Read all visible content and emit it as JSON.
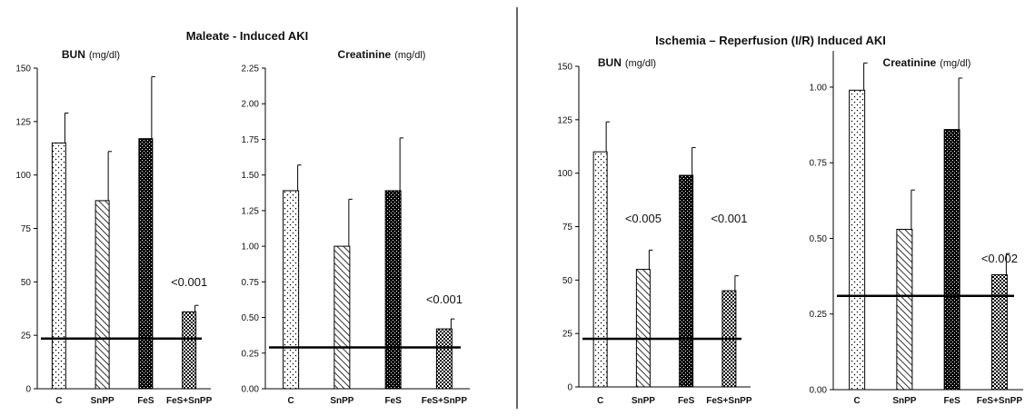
{
  "colors": {
    "bar_outline": "#000000",
    "baseline": "#000000",
    "background": "#ffffff",
    "divider": "#333333"
  },
  "panels": [
    {
      "title": "Maleate - Induced AKI"
    },
    {
      "title": "Ischemia – Reperfusion (I/R) Induced AKI"
    }
  ],
  "chart_data": [
    {
      "type": "bar",
      "panel": 0,
      "title": "BUN",
      "unit": "(mg/dl)",
      "categories": [
        "C",
        "SnPP",
        "FeS",
        "FeS+SnPP"
      ],
      "patterns": [
        "dots",
        "diagonal",
        "dense-checker",
        "checker"
      ],
      "values": [
        115,
        88,
        117,
        36
      ],
      "errors": [
        14,
        23,
        29,
        3
      ],
      "ylim": [
        0,
        150
      ],
      "yticks": [
        "0",
        "25",
        "50",
        "75",
        "100",
        "125",
        "150"
      ],
      "reference_line": 23.5,
      "annotations": [
        {
          "category": "FeS+SnPP",
          "text": "<0.001",
          "y": 48
        }
      ]
    },
    {
      "type": "bar",
      "panel": 0,
      "title": "Creatinine",
      "unit": "(mg/dl)",
      "categories": [
        "C",
        "SnPP",
        "FeS",
        "FeS+SnPP"
      ],
      "patterns": [
        "dots",
        "diagonal",
        "dense-checker",
        "checker"
      ],
      "values": [
        1.39,
        1.0,
        1.39,
        0.42
      ],
      "errors": [
        0.18,
        0.33,
        0.37,
        0.07
      ],
      "ylim": [
        0,
        2.25
      ],
      "yticks": [
        "0.00",
        "0.25",
        "0.50",
        "0.75",
        "1.00",
        "1.25",
        "1.50",
        "1.75",
        "2.00",
        "2.25"
      ],
      "reference_line": 0.29,
      "annotations": [
        {
          "category": "FeS+SnPP",
          "text": "<0.001",
          "y": 0.6
        }
      ]
    },
    {
      "type": "bar",
      "panel": 1,
      "title": "BUN",
      "unit": "(mg/dl)",
      "categories": [
        "C",
        "SnPP",
        "FeS",
        "FeS+SnPP"
      ],
      "patterns": [
        "dots",
        "diagonal",
        "dense-checker",
        "checker"
      ],
      "values": [
        110,
        55,
        99,
        45
      ],
      "errors": [
        14,
        9,
        13,
        7
      ],
      "ylim": [
        0,
        150
      ],
      "yticks": [
        "0",
        "25",
        "50",
        "75",
        "100",
        "125",
        "150"
      ],
      "reference_line": 22.5,
      "annotations": [
        {
          "category": "SnPP",
          "text": "<0.005",
          "y": 77
        },
        {
          "category": "FeS+SnPP",
          "text": "<0.001",
          "y": 77
        }
      ]
    },
    {
      "type": "bar",
      "panel": 1,
      "title": "Creatinine",
      "unit": "(mg/dl)",
      "categories": [
        "C",
        "SnPP",
        "FeS",
        "FeS+SnPP"
      ],
      "patterns": [
        "dots",
        "diagonal",
        "dense-checker",
        "checker"
      ],
      "values": [
        0.99,
        0.53,
        0.86,
        0.38
      ],
      "errors": [
        0.09,
        0.13,
        0.17,
        0.07
      ],
      "ylim": [
        0,
        1.12
      ],
      "yticks": [
        "0.00",
        "0.25",
        "0.50",
        "0.75",
        "1.00"
      ],
      "reference_line": 0.31,
      "annotations": [
        {
          "category": "FeS+SnPP",
          "text": "<0.002",
          "y": 0.42
        }
      ]
    }
  ]
}
